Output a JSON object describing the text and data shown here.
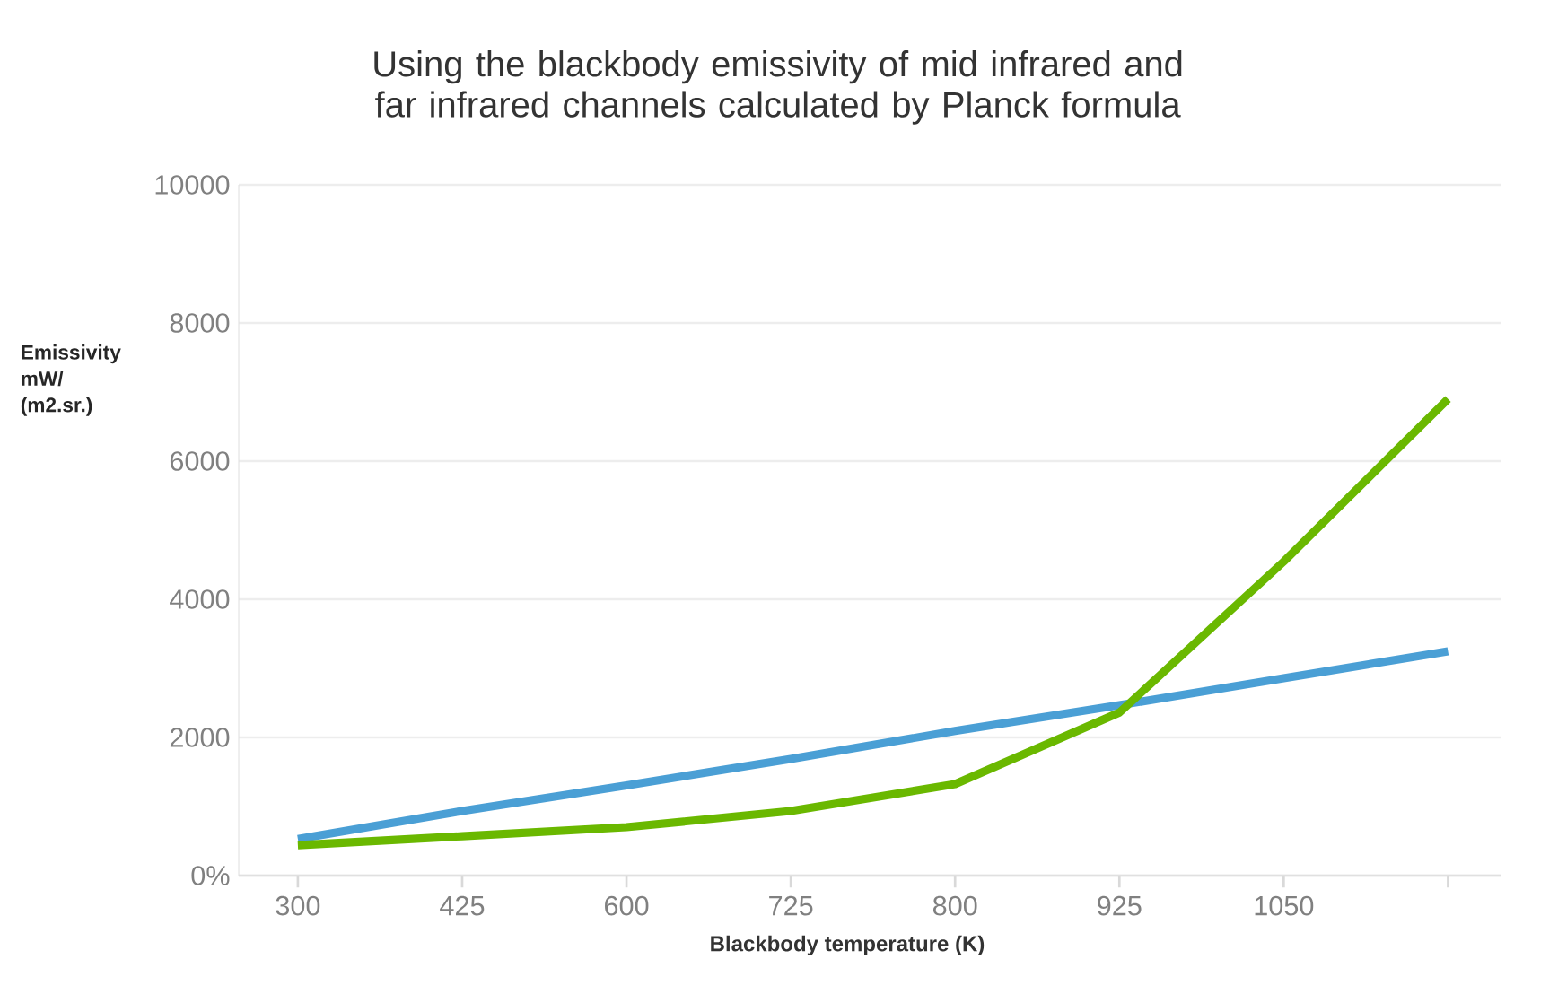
{
  "chart_data": {
    "type": "line",
    "title": "Using the blackbody emissivity of mid infrared and far infrared channels calculated by Planck formula",
    "xlabel": "Blackbody temperature (K)",
    "ylabel": "Emissivity mW/ (m2.sr.)",
    "categories": [
      "300",
      "425",
      "600",
      "725",
      "800",
      "925",
      "1050",
      null
    ],
    "series": [
      {
        "color": "#4a9fd5",
        "values": [
          530,
          935,
          1306,
          1688,
          2094,
          2467,
          2857,
          3247
        ]
      },
      {
        "color": "#6ab800",
        "values": [
          440,
          570,
          700,
          935,
          1325,
          2360,
          4545,
          6900
        ]
      }
    ],
    "ylim": [
      0,
      10000
    ],
    "yticks": [
      {
        "value": 0,
        "label": "0%"
      },
      2000,
      4000,
      6000,
      8000,
      10000
    ],
    "grid": "y",
    "marker": "none",
    "line_style": "solid"
  }
}
